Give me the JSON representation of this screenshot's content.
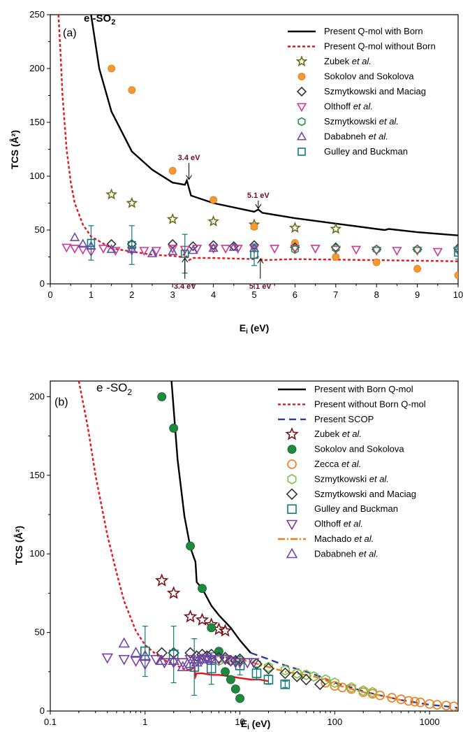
{
  "chart_data": [
    {
      "type": "scatter",
      "panel_label": "(a)",
      "species": "e -SO",
      "species_sub": "2",
      "xlabel": "E",
      "xlabel_sub": "i",
      "xlabel_unit": " (eV)",
      "ylabel": "TCS (Å²)",
      "xlim": [
        0,
        10
      ],
      "ylim": [
        0,
        250
      ],
      "xscale": "linear",
      "xticks": [
        0,
        1,
        2,
        3,
        4,
        5,
        6,
        7,
        8,
        9,
        10
      ],
      "yticks": [
        0,
        50,
        100,
        150,
        200,
        250
      ],
      "legend_position": "top-right",
      "annotations": [
        {
          "text": "3.4 eV",
          "x": 3.4,
          "y": 115,
          "arrow_to_y": 97,
          "pos": "above"
        },
        {
          "text": "5.1 eV",
          "x": 5.1,
          "y": 80,
          "arrow_to_y": 70,
          "pos": "above"
        },
        {
          "text": "3.4 eV",
          "x": 3.3,
          "y": 6,
          "arrow_to_y": 24,
          "pos": "below"
        },
        {
          "text": "5.1 eV",
          "x": 5.15,
          "y": 6,
          "arrow_to_y": 23,
          "pos": "below"
        }
      ],
      "series": [
        {
          "name": "Present Q-mol with Born",
          "kind": "line",
          "color": "#000000",
          "dash": "",
          "x": [
            1.0,
            1.2,
            1.5,
            2.0,
            2.5,
            3.0,
            3.3,
            3.35,
            3.45,
            4.0,
            5.0,
            5.1,
            5.2,
            6.0,
            7.0,
            8.0,
            8.2,
            8.3,
            9.0,
            10.0
          ],
          "y": [
            250,
            200,
            160,
            123,
            106,
            94,
            92,
            96,
            82,
            75,
            67,
            69,
            66,
            61,
            56,
            51,
            50,
            51,
            48,
            45
          ]
        },
        {
          "name": "Present Q-mol without Born",
          "kind": "line",
          "color": "#e8141b",
          "dash": "4,3",
          "x": [
            0.2,
            0.25,
            0.3,
            0.4,
            0.5,
            0.6,
            0.8,
            1.0,
            1.5,
            2.0,
            2.5,
            3.0,
            3.2,
            3.3,
            3.4,
            3.5,
            4.0,
            5.0,
            5.1,
            5.2,
            6.0,
            8.0,
            10.0
          ],
          "y": [
            250,
            215,
            175,
            125,
            95,
            75,
            55,
            44,
            33,
            30,
            27,
            26,
            25,
            28,
            22,
            24,
            24,
            23,
            25,
            22,
            23,
            22,
            21
          ]
        },
        {
          "name": "Zubek et al.",
          "kind": "marker",
          "marker": "star",
          "stroke": "#6b6b1a",
          "fill": "none",
          "x": [
            1.5,
            2.0,
            3.0,
            4.0,
            5.0,
            6.0,
            7.0
          ],
          "y": [
            83,
            75,
            60,
            58,
            55,
            52,
            51
          ]
        },
        {
          "name": "Sokolov and Sokolova",
          "kind": "marker",
          "marker": "filled-circle",
          "stroke": "#e9761a",
          "fill": "#f39a30",
          "x": [
            1.5,
            2.0,
            3.0,
            4.0,
            5.0,
            6.0,
            7.0,
            8.0,
            9.0,
            10.0
          ],
          "y": [
            200,
            180,
            105,
            78,
            53,
            38,
            25,
            20,
            14,
            8
          ]
        },
        {
          "name": "Szmytkowski and Maciag",
          "kind": "marker",
          "marker": "diamond",
          "stroke": "#333333",
          "fill": "none",
          "x": [
            1.5,
            2.0,
            3.0,
            3.5,
            4.0,
            4.5,
            5.0,
            6.0,
            7.0,
            8.0,
            9.0,
            10.0
          ],
          "y": [
            37,
            37,
            37,
            35,
            36,
            35,
            36,
            34,
            34,
            32,
            32,
            33
          ]
        },
        {
          "name": "Olthoff et al.",
          "kind": "marker",
          "marker": "triangle-down",
          "stroke": "#c93a9c",
          "fill": "none",
          "x": [
            0.4,
            0.6,
            0.8,
            1.0,
            1.3,
            1.6,
            2.0,
            2.3,
            2.6,
            3.0,
            3.3,
            3.6,
            4.0,
            4.3,
            4.6,
            5.0,
            5.5,
            6.0,
            6.5,
            7.0,
            7.5,
            8.0,
            8.5,
            9.0,
            9.5,
            10.0
          ],
          "y": [
            34,
            33,
            32,
            30,
            33,
            31,
            31,
            31,
            31,
            33,
            32,
            33,
            33,
            33,
            33,
            33,
            33,
            33,
            33,
            32,
            32,
            31,
            31,
            31,
            30,
            31
          ]
        },
        {
          "name": "Szmytkowski et al.",
          "kind": "marker",
          "marker": "hexagon",
          "stroke": "#1e9a3e",
          "fill": "none",
          "x": [
            6.0,
            7.0,
            8.0,
            9.0,
            10.0
          ],
          "y": [
            32,
            33,
            32,
            32,
            32
          ]
        },
        {
          "name": "Dababneh et al.",
          "kind": "marker",
          "marker": "triangle-up",
          "stroke": "#6a4aaa",
          "fill": "none",
          "x": [
            0.6,
            0.8,
            1.0,
            1.5,
            2.0,
            2.5,
            3.0,
            3.5,
            4.0,
            4.5,
            5.0
          ],
          "y": [
            43,
            37,
            35,
            32,
            32,
            28,
            30,
            31,
            33,
            34,
            33
          ]
        },
        {
          "name": "Gulley and Buckman",
          "kind": "marker",
          "marker": "square",
          "stroke": "#0f7a7a",
          "fill": "none",
          "x": [
            1.0,
            2.0,
            3.3,
            5.0,
            10.0
          ],
          "y": [
            38,
            36,
            28,
            27,
            29
          ],
          "err": [
            16,
            18,
            18,
            10,
            6
          ]
        }
      ]
    },
    {
      "type": "scatter",
      "panel_label": "(b)",
      "species": "e -SO",
      "species_sub": "2",
      "xlabel": "E",
      "xlabel_sub": "i",
      "xlabel_unit": " (eV)",
      "ylabel": "TCS (Å²)",
      "xlim": [
        0.1,
        2000
      ],
      "ylim": [
        0,
        210
      ],
      "xscale": "log",
      "xticks": [
        0.1,
        1,
        10,
        100,
        1000
      ],
      "xtick_labels": [
        "0.1",
        "1",
        "10",
        "100",
        "1000"
      ],
      "yticks": [
        0,
        50,
        100,
        150,
        200
      ],
      "legend_position": "top-right",
      "series": [
        {
          "name": "Present with Born Q-mol",
          "kind": "line",
          "color": "#000000",
          "dash": "",
          "x": [
            1.9,
            2.2,
            2.6,
            3.0,
            3.3,
            3.4,
            3.5,
            4.0,
            5.0,
            6.0,
            8.0,
            10.0,
            13.0
          ],
          "y": [
            210,
            160,
            124,
            104,
            97,
            95,
            82,
            78,
            67,
            61,
            53,
            45,
            37
          ]
        },
        {
          "name": "Present without Born Q-mol",
          "kind": "line",
          "color": "#e8141b",
          "dash": "4,3",
          "x": [
            0.2,
            0.25,
            0.3,
            0.4,
            0.5,
            0.6,
            0.8,
            1.0,
            1.5,
            2.0,
            2.5,
            3.0
          ],
          "y": [
            210,
            180,
            150,
            112,
            88,
            70,
            51,
            42,
            33,
            30,
            27,
            26
          ]
        },
        {
          "name": "Present without Born Q-mol",
          "kind": "line",
          "color": "#e8141b",
          "dash": "",
          "legend": false,
          "x": [
            3.0,
            3.3,
            3.4,
            3.5,
            4.0,
            5.0,
            6.0,
            8.0,
            10.0,
            13.0,
            16.0,
            20.0
          ],
          "y": [
            26,
            28,
            22,
            24,
            24,
            23,
            23,
            22,
            21,
            20,
            20,
            19
          ]
        },
        {
          "name": "Present SCOP",
          "kind": "line",
          "color": "#2a3f9e",
          "dash": "10,6",
          "x": [
            13,
            20,
            30,
            50,
            70,
            100,
            150,
            200,
            300,
            500,
            700,
            1000,
            1500,
            2000
          ],
          "y": [
            37,
            33,
            29,
            25,
            22,
            18,
            15,
            12.5,
            10,
            7,
            5.5,
            4,
            3,
            2
          ]
        },
        {
          "name": "Zubek et al.",
          "kind": "marker",
          "marker": "star",
          "stroke": "#7a1018",
          "fill": "none",
          "x": [
            1.5,
            2.0,
            3.0,
            4.0,
            5.0,
            6.0,
            7.0
          ],
          "y": [
            83,
            75,
            60,
            58,
            55,
            52,
            51
          ]
        },
        {
          "name": "Sokolov and Sokolova",
          "kind": "marker",
          "marker": "filled-circle",
          "stroke": "#0f5a28",
          "fill": "#1e8a3e",
          "x": [
            1.5,
            2.0,
            3.0,
            4.0,
            5.0,
            6.0,
            7.0,
            8.0,
            9.0,
            10.0
          ],
          "y": [
            200,
            180,
            105,
            78,
            53,
            38,
            25,
            20,
            14,
            8
          ]
        },
        {
          "name": "Zecca et al.",
          "kind": "marker",
          "marker": "circle",
          "stroke": "#f07a1a",
          "fill": "none",
          "x": [
            80,
            100,
            120,
            150,
            200,
            250,
            300,
            400,
            500,
            600,
            700,
            800,
            1000,
            1200,
            1500,
            1800
          ],
          "y": [
            18,
            16,
            15,
            14,
            12,
            11,
            10,
            8.5,
            7.5,
            6.5,
            6,
            5.5,
            4.5,
            4,
            3.5,
            3
          ]
        },
        {
          "name": "Szmytkowski et al.",
          "kind": "marker",
          "marker": "hexagon",
          "stroke": "#7cc043",
          "fill": "none",
          "x": [
            6,
            7,
            8,
            10,
            15,
            20,
            30,
            40,
            50,
            60,
            80,
            100,
            150,
            200,
            250
          ],
          "y": [
            32,
            33,
            32,
            32,
            30,
            28,
            26,
            24,
            23,
            22,
            20,
            18,
            15,
            13,
            12
          ]
        },
        {
          "name": "Szmytkowski and Maciag",
          "kind": "marker",
          "marker": "diamond",
          "stroke": "#333333",
          "fill": "none",
          "x": [
            1.5,
            2.0,
            3.0,
            3.5,
            4.0,
            4.5,
            5.0,
            6.0,
            7.0,
            8.0,
            9.0,
            10.0,
            15.0,
            20.0,
            30.0,
            40.0,
            50.0,
            70.0
          ],
          "y": [
            37,
            37,
            37,
            35,
            36,
            35,
            36,
            34,
            34,
            32,
            32,
            33,
            30,
            27,
            24,
            22,
            20,
            17
          ]
        },
        {
          "name": "Gulley and Buckman",
          "kind": "marker",
          "marker": "square",
          "stroke": "#0f7a7a",
          "fill": "none",
          "x": [
            1.0,
            2.0,
            3.3,
            5.0,
            10.0,
            15.0,
            20.0,
            30.0
          ],
          "y": [
            38,
            36,
            28,
            27,
            29,
            24,
            20,
            17
          ],
          "err": [
            16,
            18,
            18,
            10,
            6,
            4,
            3,
            2
          ]
        },
        {
          "name": "Olthoff et al.",
          "kind": "marker",
          "marker": "triangle-down",
          "stroke": "#7a3aa0",
          "fill": "none",
          "x": [
            0.4,
            0.6,
            0.8,
            1.0,
            1.3,
            1.6,
            2.0,
            2.5,
            3.0,
            3.5,
            4.0,
            4.5,
            5.0,
            6.0,
            7.0,
            8.0,
            9.0,
            10.0,
            12.0,
            14.0
          ],
          "y": [
            34,
            33,
            32,
            30,
            33,
            31,
            31,
            31,
            33,
            32,
            33,
            33,
            33,
            33,
            33,
            32,
            31,
            31,
            31,
            31
          ]
        },
        {
          "name": "Machado et al.",
          "kind": "line",
          "color": "#f07a1a",
          "dash": "10,3,2,3",
          "x": [
            10,
            20,
            30,
            50,
            70,
            100,
            150,
            200,
            300,
            500
          ],
          "y": [
            33,
            28,
            25,
            23,
            21,
            17,
            14,
            12,
            10,
            7
          ]
        },
        {
          "name": "Dababneh et al.",
          "kind": "marker",
          "marker": "triangle-up",
          "stroke": "#6a4aaa",
          "fill": "none",
          "x": [
            0.6,
            0.8,
            1.0,
            1.5,
            2.0,
            2.5,
            3.0,
            3.5,
            4.0,
            4.5,
            5.0
          ],
          "y": [
            43,
            37,
            35,
            32,
            32,
            28,
            30,
            31,
            33,
            34,
            33
          ]
        }
      ]
    }
  ]
}
